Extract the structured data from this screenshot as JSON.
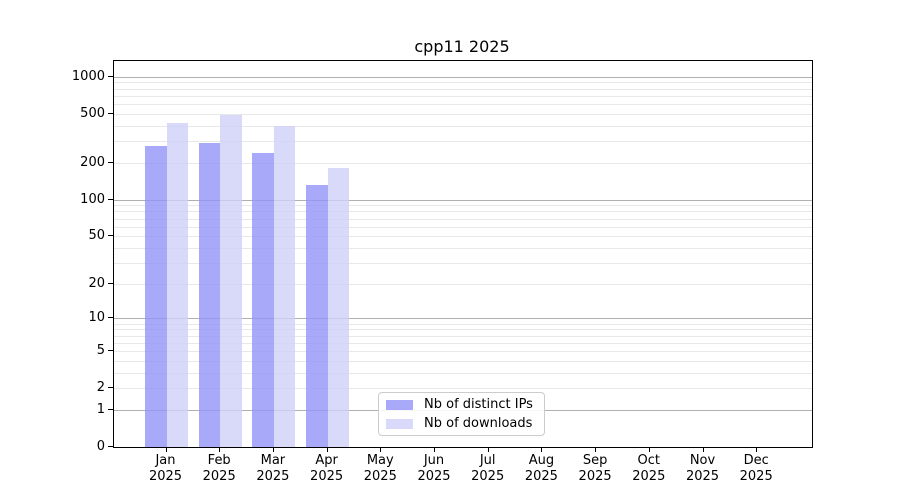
{
  "chart_data": {
    "type": "bar",
    "title": "cpp11 2025",
    "categories": [
      "Jan",
      "Feb",
      "Mar",
      "Apr",
      "May",
      "Jun",
      "Jul",
      "Aug",
      "Sep",
      "Oct",
      "Nov",
      "Dec"
    ],
    "category_year": "2025",
    "series": [
      {
        "name": "Nb of distinct IPs",
        "color": "#9494f9",
        "fill": "rgba(148,148,249,0.8)",
        "values": [
          274,
          292,
          240,
          131,
          null,
          null,
          null,
          null,
          null,
          null,
          null,
          null
        ]
      },
      {
        "name": "Nb of downloads",
        "color": "#d0d0f9",
        "fill": "rgba(208,208,249,0.8)",
        "values": [
          424,
          487,
          400,
          180,
          null,
          null,
          null,
          null,
          null,
          null,
          null,
          null
        ]
      }
    ],
    "xlabel": "",
    "ylabel": "",
    "y_ticks": [
      0,
      1,
      2,
      5,
      10,
      20,
      50,
      100,
      200,
      500,
      1000
    ],
    "y_scale": "log10(1+v)",
    "ylim": [
      0,
      1340
    ],
    "grid": "horizontal",
    "grid_major_at": [
      1,
      10,
      100,
      1000
    ],
    "legend_position": "bottom-center-inside",
    "colors": {
      "major_grid": "#b0b0b0",
      "minor_grid": "#e8e8e8",
      "axis": "#000000",
      "text": "#000000"
    }
  }
}
